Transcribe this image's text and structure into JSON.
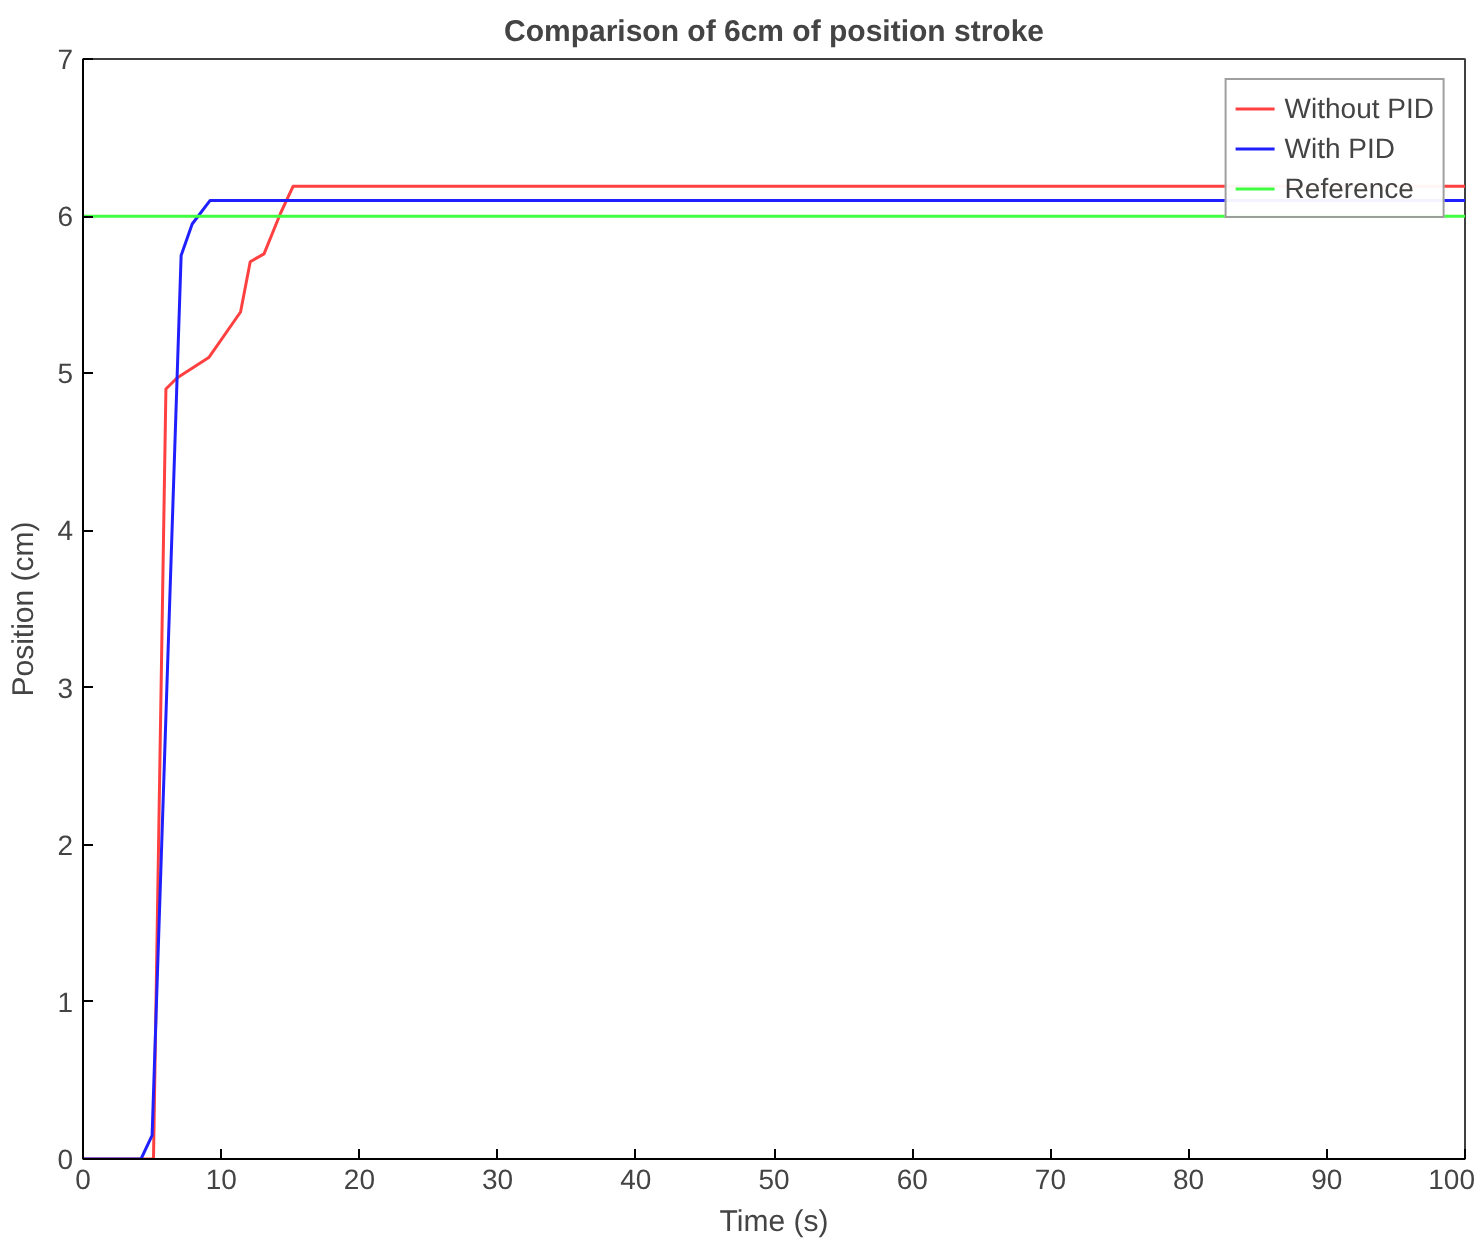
{
  "chart_data": {
    "type": "line",
    "title": "Comparison of 6cm of position stroke",
    "xlabel": "Time (s)",
    "ylabel": "Position (cm)",
    "xlim": [
      0,
      100
    ],
    "ylim": [
      0,
      7
    ],
    "xticks": [
      0,
      10,
      20,
      30,
      40,
      50,
      60,
      70,
      80,
      90,
      100
    ],
    "yticks": [
      0,
      1,
      2,
      3,
      4,
      5,
      6,
      7
    ],
    "grid": false,
    "legend": "top right",
    "series": [
      {
        "name": "Without PID",
        "color": "#ff4040",
        "x": [
          0,
          5.1,
          6.0,
          6.8,
          9.1,
          11.4,
          12.1,
          13.1,
          14.3,
          15.2,
          100
        ],
        "values": [
          0,
          0,
          4.9,
          4.97,
          5.1,
          5.39,
          5.71,
          5.76,
          6.02,
          6.19,
          6.19
        ]
      },
      {
        "name": "With PID",
        "color": "#2020ff",
        "x": [
          0,
          4.2,
          5.0,
          7.1,
          7.9,
          9.2,
          100
        ],
        "values": [
          0,
          0,
          0.15,
          5.75,
          5.95,
          6.1,
          6.1
        ]
      },
      {
        "name": "Reference",
        "color": "#40ff40",
        "x": [
          0,
          100
        ],
        "values": [
          6,
          6
        ]
      }
    ]
  }
}
